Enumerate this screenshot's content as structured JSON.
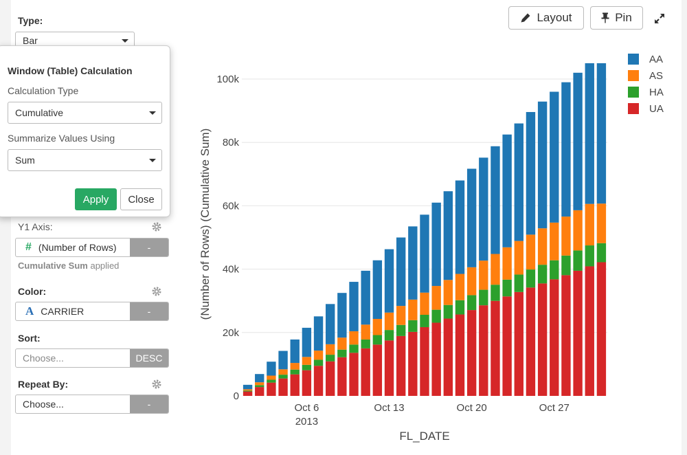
{
  "sidebar": {
    "type_label": "Type:",
    "type_value": "Bar",
    "y1_label": "Y1 Axis:",
    "y1_field": "(Number of Rows)",
    "y1_field_icon": "hash-icon",
    "y1_button": "-",
    "y1_note_bold": "Cumulative Sum",
    "y1_note_rest": " applied",
    "color_label": "Color:",
    "color_field": "CARRIER",
    "color_field_icon": "text-type-icon",
    "color_button": "-",
    "sort_label": "Sort:",
    "sort_placeholder": "Choose...",
    "sort_button": "DESC",
    "repeat_label": "Repeat By:",
    "repeat_placeholder": "Choose...",
    "repeat_button": "-"
  },
  "popup": {
    "title": "Window (Table) Calculation",
    "calc_type_label": "Calculation Type",
    "calc_type_value": "Cumulative",
    "summarize_label": "Summarize Values Using",
    "summarize_value": "Sum",
    "apply_label": "Apply",
    "close_label": "Close"
  },
  "toolbar": {
    "layout_label": "Layout",
    "layout_icon": "pencil-icon",
    "pin_label": "Pin",
    "pin_icon": "pin-icon",
    "expand_icon": "expand-icon"
  },
  "colors": {
    "AA": "#1f77b4",
    "AS": "#ff7f0e",
    "HA": "#2ca02c",
    "UA": "#d62728",
    "apply_button": "#28a863"
  },
  "chart_data": {
    "type": "bar",
    "stacked": true,
    "xlabel": "FL_DATE",
    "ylabel": "(Number of Rows) (Cumulative Sum)",
    "x_ticks": [
      {
        "day": 6,
        "label": "Oct 6",
        "sublabel": "2013"
      },
      {
        "day": 13,
        "label": "Oct 13",
        "sublabel": ""
      },
      {
        "day": 20,
        "label": "Oct 20",
        "sublabel": ""
      },
      {
        "day": 27,
        "label": "Oct 27",
        "sublabel": ""
      }
    ],
    "y_ticks": [
      {
        "value": 0,
        "label": "0"
      },
      {
        "value": 20000,
        "label": "20k"
      },
      {
        "value": 40000,
        "label": "40k"
      },
      {
        "value": 60000,
        "label": "60k"
      },
      {
        "value": 80000,
        "label": "80k"
      },
      {
        "value": 100000,
        "label": "100k"
      }
    ],
    "ylim": [
      0,
      105000
    ],
    "legend_position": "top-right",
    "categories": [
      "2013-10-01",
      "2013-10-02",
      "2013-10-03",
      "2013-10-04",
      "2013-10-05",
      "2013-10-06",
      "2013-10-07",
      "2013-10-08",
      "2013-10-09",
      "2013-10-10",
      "2013-10-11",
      "2013-10-12",
      "2013-10-13",
      "2013-10-14",
      "2013-10-15",
      "2013-10-16",
      "2013-10-17",
      "2013-10-18",
      "2013-10-19",
      "2013-10-20",
      "2013-10-21",
      "2013-10-22",
      "2013-10-23",
      "2013-10-24",
      "2013-10-25",
      "2013-10-26",
      "2013-10-27",
      "2013-10-28",
      "2013-10-29",
      "2013-10-30",
      "2013-10-31"
    ],
    "series": [
      {
        "name": "UA",
        "values": [
          1400,
          2800,
          4200,
          5500,
          6800,
          8100,
          9500,
          10900,
          12200,
          13600,
          15000,
          16200,
          17500,
          18900,
          20200,
          21700,
          23100,
          24400,
          25700,
          27100,
          28600,
          30000,
          31400,
          32800,
          34200,
          35500,
          36800,
          38100,
          39500,
          40900,
          42200
        ]
      },
      {
        "name": "HA",
        "values": [
          280,
          600,
          900,
          1200,
          1500,
          1700,
          1900,
          2100,
          2400,
          2600,
          2800,
          3000,
          3300,
          3500,
          3700,
          3900,
          4100,
          4300,
          4500,
          4700,
          4900,
          5100,
          5300,
          5500,
          5700,
          5900,
          6000,
          6200,
          6400,
          6600,
          6000
        ]
      },
      {
        "name": "AS",
        "values": [
          420,
          900,
          1300,
          1700,
          2100,
          2500,
          2900,
          3300,
          3800,
          4200,
          4700,
          5100,
          5500,
          6000,
          6500,
          7000,
          7500,
          7900,
          8300,
          8800,
          9200,
          9700,
          10200,
          10600,
          11000,
          11500,
          11900,
          12300,
          12700,
          13100,
          12500
        ]
      },
      {
        "name": "AA",
        "values": [
          1400,
          2600,
          4400,
          5800,
          7400,
          9200,
          10800,
          12700,
          14100,
          15600,
          17000,
          18500,
          20000,
          21600,
          23100,
          24600,
          26300,
          28000,
          29500,
          31100,
          32500,
          34000,
          35600,
          37100,
          38700,
          40000,
          41300,
          42400,
          43400,
          44400,
          44300
        ]
      }
    ]
  }
}
